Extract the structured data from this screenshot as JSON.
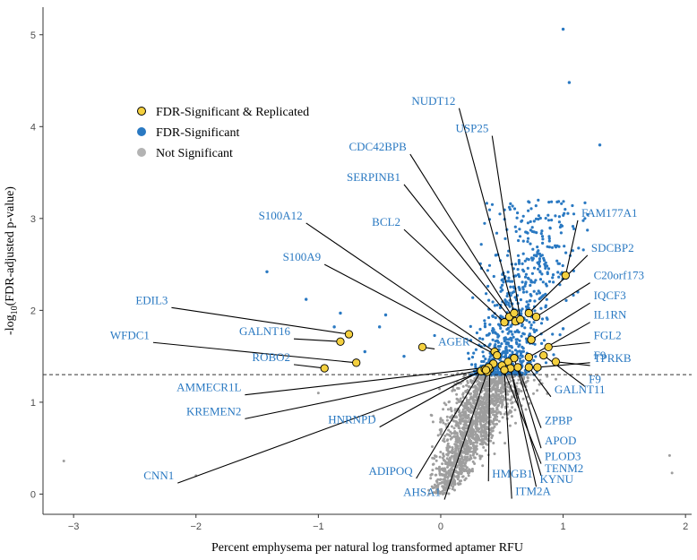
{
  "chart_data": {
    "type": "scatter",
    "title": "",
    "xlabel": "Percent emphysema per natural log transformed aptamer RFU",
    "ylabel": "-log10(FDR-adjusted p-value)",
    "ylabel_parts": {
      "prefix": "-log",
      "sub": "10",
      "suffix": "(FDR-adjusted p-value)"
    },
    "xlim": [
      -3.25,
      2.05
    ],
    "ylim": [
      -0.22,
      5.3
    ],
    "xticks": [
      -3,
      -2,
      -1,
      0,
      1,
      2
    ],
    "yticks": [
      0,
      1,
      2,
      3,
      4,
      5
    ],
    "threshold_y": 1.3,
    "legend": {
      "placement": "top-left",
      "items": [
        {
          "label": "FDR-Significant & Replicated",
          "color": "#f4d03f",
          "stroke": "#000000"
        },
        {
          "label": "FDR-Significant",
          "color": "#2a79c2",
          "stroke": "#2a79c2"
        },
        {
          "label": "Not Significant",
          "color": "#b3b3b3",
          "stroke": "#b3b3b3"
        }
      ]
    },
    "colors": {
      "replicated": "#f4d03f",
      "significant": "#2a79c2",
      "not_significant": "#9e9e9e",
      "label": "#2a79c2"
    },
    "series": [
      {
        "name": "FDR-Significant & Replicated",
        "points": [
          {
            "gene": "EDIL3",
            "x": -0.75,
            "y": 1.74,
            "lx": -2.2,
            "ly": 2.03
          },
          {
            "gene": "GALNT16",
            "x": -0.82,
            "y": 1.66,
            "lx": -1.2,
            "ly": 1.69
          },
          {
            "gene": "WFDC1",
            "x": -0.69,
            "y": 1.43,
            "lx": -2.35,
            "ly": 1.65
          },
          {
            "gene": "ROBO2",
            "x": -0.95,
            "y": 1.37,
            "lx": -1.2,
            "ly": 1.41
          },
          {
            "gene": "AGER",
            "x": -0.15,
            "y": 1.6,
            "lx": -0.05,
            "ly": 1.58
          },
          {
            "gene": "S100A12",
            "x": 0.44,
            "y": 1.55,
            "lx": -1.1,
            "ly": 2.95
          },
          {
            "gene": "S100A9",
            "x": 0.46,
            "y": 1.51,
            "lx": -0.95,
            "ly": 2.5
          },
          {
            "gene": "BCL2",
            "x": 0.52,
            "y": 1.87,
            "lx": -0.3,
            "ly": 2.88
          },
          {
            "gene": "SERPINB1",
            "x": 0.56,
            "y": 1.93,
            "lx": -0.3,
            "ly": 3.37
          },
          {
            "gene": "CDC42BPB",
            "x": 0.61,
            "y": 1.88,
            "lx": -0.25,
            "ly": 3.7
          },
          {
            "gene": "NUDT12",
            "x": 0.6,
            "y": 1.97,
            "lx": 0.15,
            "ly": 4.2
          },
          {
            "gene": "USP25",
            "x": 0.65,
            "y": 1.9,
            "lx": 0.42,
            "ly": 3.9
          },
          {
            "gene": "FAM177A1",
            "x": 1.02,
            "y": 2.38,
            "lx": 1.12,
            "ly": 2.98
          },
          {
            "gene": "SDCBP2",
            "x": 0.72,
            "y": 1.97,
            "lx": 1.2,
            "ly": 2.6
          },
          {
            "gene": "C20orf173",
            "x": 0.78,
            "y": 1.93,
            "lx": 1.22,
            "ly": 2.3
          },
          {
            "gene": "IQCF3",
            "x": 0.74,
            "y": 1.68,
            "lx": 1.22,
            "ly": 2.08
          },
          {
            "gene": "IL1RN",
            "x": 0.72,
            "y": 1.49,
            "lx": 1.22,
            "ly": 1.87
          },
          {
            "gene": "FGL2",
            "x": 0.88,
            "y": 1.6,
            "lx": 1.22,
            "ly": 1.65
          },
          {
            "gene": "TPRKB",
            "x": 0.94,
            "y": 1.44,
            "lx": 1.22,
            "ly": 1.4
          },
          {
            "gene": "F9",
            "x": 0.84,
            "y": 1.51,
            "lx": 1.18,
            "ly": 1.17
          },
          {
            "gene": "F9",
            "x": 0.79,
            "y": 1.38,
            "lx": 1.22,
            "ly": 1.43
          },
          {
            "gene": "GALNT11",
            "x": 0.72,
            "y": 1.38,
            "lx": 0.9,
            "ly": 1.06
          },
          {
            "gene": "ZPBP",
            "x": 0.63,
            "y": 1.38,
            "lx": 0.82,
            "ly": 0.72
          },
          {
            "gene": "APOD",
            "x": 0.6,
            "y": 1.48,
            "lx": 0.82,
            "ly": 0.5
          },
          {
            "gene": "TENM2",
            "x": 0.55,
            "y": 1.44,
            "lx": 0.82,
            "ly": 0.2
          },
          {
            "gene": "PLOD3",
            "x": 0.5,
            "y": 1.4,
            "lx": 0.82,
            "ly": 0.33
          },
          {
            "gene": "KYNU",
            "x": 0.57,
            "y": 1.37,
            "lx": 0.78,
            "ly": 0.08
          },
          {
            "gene": "ITM2A",
            "x": 0.52,
            "y": 1.35,
            "lx": 0.58,
            "ly": -0.05
          },
          {
            "gene": "HMGB1",
            "x": 0.4,
            "y": 1.36,
            "lx": 0.39,
            "ly": 0.14
          },
          {
            "gene": "AHSA1",
            "x": 0.38,
            "y": 1.33,
            "lx": 0.03,
            "ly": -0.06
          },
          {
            "gene": "ADIPOQ",
            "x": 0.33,
            "y": 1.34,
            "lx": -0.2,
            "ly": 0.17
          },
          {
            "gene": "HNRNPD",
            "x": 0.43,
            "y": 1.42,
            "lx": -0.5,
            "ly": 0.73
          },
          {
            "gene": "KREMEN2",
            "x": 0.36,
            "y": 1.36,
            "lx": -1.6,
            "ly": 0.82
          },
          {
            "gene": "AMMECR1L",
            "x": 0.39,
            "y": 1.38,
            "lx": -1.6,
            "ly": 1.08
          },
          {
            "gene": "CNN1",
            "x": 0.37,
            "y": 1.35,
            "lx": -2.15,
            "ly": 0.12
          }
        ]
      },
      {
        "name": "FDR-Significant",
        "points": [
          {
            "x": -1.42,
            "y": 2.42
          },
          {
            "x": -1.1,
            "y": 2.12
          },
          {
            "x": -0.82,
            "y": 1.97
          },
          {
            "x": -0.87,
            "y": 1.82
          },
          {
            "x": -0.45,
            "y": 1.95
          },
          {
            "x": -0.5,
            "y": 1.82
          },
          {
            "x": -0.3,
            "y": 1.5
          },
          {
            "x": -0.62,
            "y": 1.55
          },
          {
            "x": 1.0,
            "y": 5.06
          },
          {
            "x": 1.05,
            "y": 4.48
          },
          {
            "x": 1.3,
            "y": 3.8
          },
          {
            "x": 0.45,
            "y": 2.6
          },
          {
            "x": 1.12,
            "y": 2.2
          },
          {
            "x": 1.0,
            "y": 1.8
          }
        ]
      },
      {
        "name": "Not Significant",
        "points": [
          {
            "x": -3.08,
            "y": 0.36
          },
          {
            "x": -2.0,
            "y": 0.2
          },
          {
            "x": 1.87,
            "y": 0.42
          },
          {
            "x": 1.89,
            "y": 0.23
          },
          {
            "x": -1.0,
            "y": 1.1
          },
          {
            "x": -0.55,
            "y": 0.85
          }
        ]
      }
    ]
  }
}
